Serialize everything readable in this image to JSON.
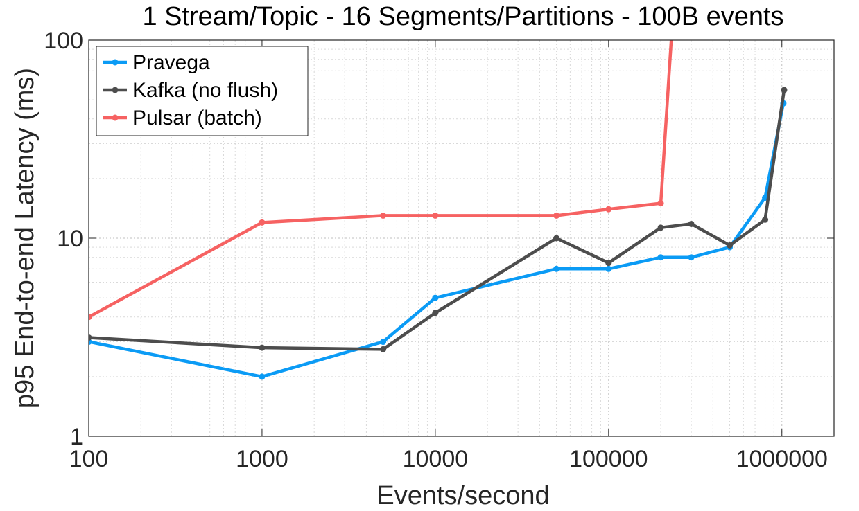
{
  "chart_data": {
    "type": "line",
    "title": "1 Stream/Topic - 16 Segments/Partitions - 100B events",
    "xlabel": "Events/second",
    "ylabel": "p95 End-to-end Latency (ms)",
    "xscale": "log",
    "yscale": "log",
    "xlim": [
      100,
      2000000
    ],
    "ylim": [
      1,
      100
    ],
    "x_ticks": [
      100,
      1000,
      10000,
      100000,
      1000000
    ],
    "x_tick_labels": [
      "100",
      "1000",
      "10000",
      "100000",
      "1000000"
    ],
    "y_ticks": [
      1,
      10,
      100
    ],
    "y_tick_labels": [
      "1",
      "10",
      "100"
    ],
    "grid": true,
    "legend_position": "top-left",
    "series": [
      {
        "name": "Pravega",
        "color": "#0b9bf5",
        "x": [
          100,
          1000,
          5000,
          10000,
          50000,
          100000,
          200000,
          300000,
          500000,
          800000,
          1020000
        ],
        "y": [
          3.0,
          2.0,
          3.0,
          5.0,
          7.0,
          7.0,
          8.0,
          8.0,
          9.0,
          16.0,
          48.0
        ]
      },
      {
        "name": "Kafka (no flush)",
        "color": "#4d4d4d",
        "x": [
          100,
          1000,
          5000,
          10000,
          50000,
          100000,
          200000,
          300000,
          500000,
          800000,
          1030000
        ],
        "y": [
          3.15,
          2.8,
          2.75,
          4.2,
          10.0,
          7.5,
          11.3,
          11.8,
          9.2,
          12.4,
          56.0
        ]
      },
      {
        "name": "Pulsar (batch)",
        "color": "#f66262",
        "x": [
          100,
          1000,
          5000,
          10000,
          50000,
          100000,
          200000,
          230000
        ],
        "y": [
          4.0,
          12.0,
          13.0,
          13.0,
          13.0,
          14.0,
          15.0,
          100.0
        ]
      }
    ]
  }
}
